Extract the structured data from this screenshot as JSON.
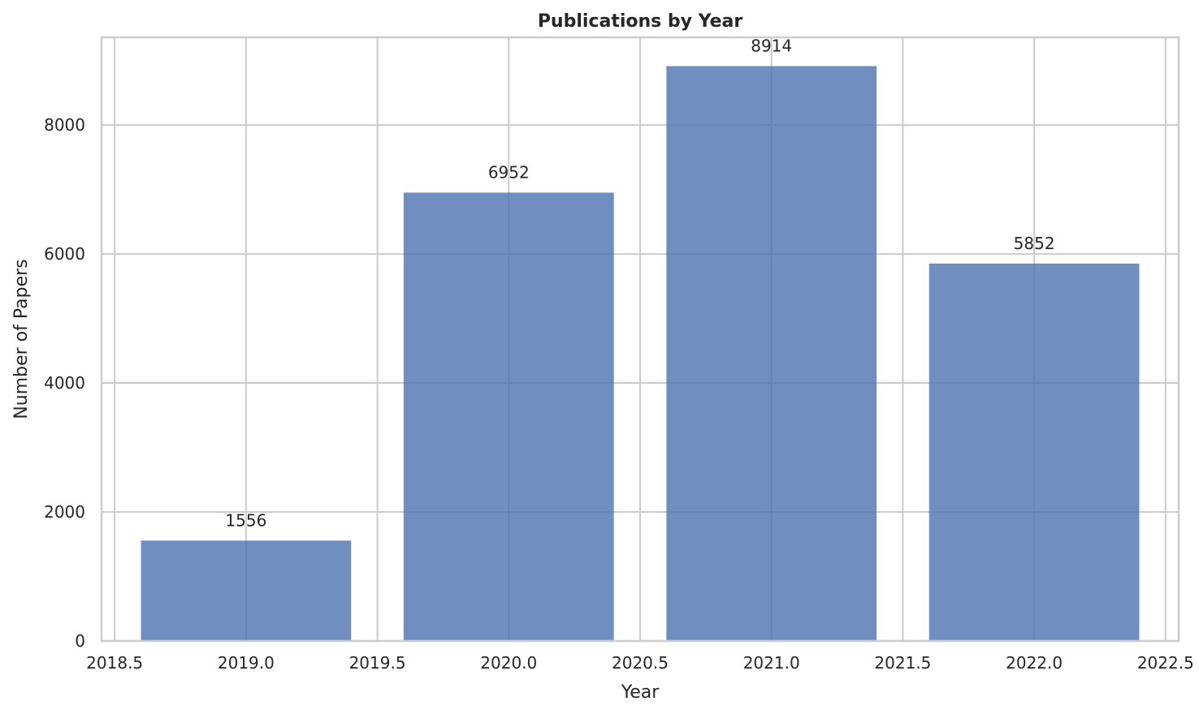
{
  "chart_data": {
    "type": "bar",
    "title": "Publications by Year",
    "xlabel": "Year",
    "ylabel": "Number of Papers",
    "x": [
      2019,
      2020,
      2021,
      2022
    ],
    "values": [
      1556,
      6952,
      8914,
      5852
    ],
    "data_labels": [
      "1556",
      "6952",
      "8914",
      "5852"
    ],
    "bar_width": 0.8,
    "xlim": [
      2018.45,
      2022.55
    ],
    "ylim": [
      0,
      9360
    ],
    "x_ticks": [
      2018.5,
      2019.0,
      2019.5,
      2020.0,
      2020.5,
      2021.0,
      2021.5,
      2022.0,
      2022.5
    ],
    "x_tick_labels": [
      "2018.5",
      "2019.0",
      "2019.5",
      "2020.0",
      "2020.5",
      "2021.0",
      "2021.5",
      "2022.0",
      "2022.5"
    ],
    "y_ticks": [
      0,
      2000,
      4000,
      6000,
      8000
    ],
    "y_tick_labels": [
      "0",
      "2000",
      "4000",
      "6000",
      "8000"
    ],
    "grid": true,
    "bar_color": "#4c72b0",
    "grid_color": "#cccccc",
    "text_color": "#262626"
  }
}
